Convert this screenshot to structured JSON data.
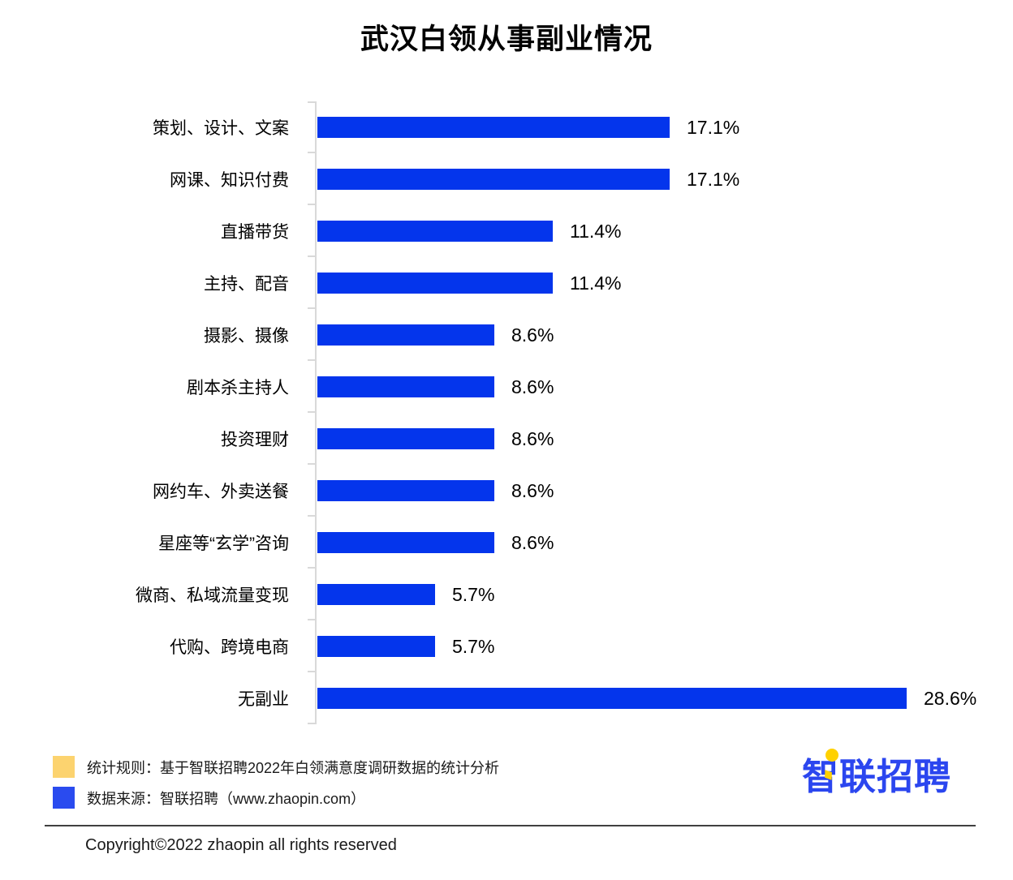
{
  "title": "武汉白领从事副业情况",
  "chart_data": {
    "type": "bar",
    "orientation": "horizontal",
    "title": "武汉白领从事副业情况",
    "categories": [
      "策划、设计、文案",
      "网课、知识付费",
      "直播带货",
      "主持、配音",
      "摄影、摄像",
      "剧本杀主持人",
      "投资理财",
      "网约车、外卖送餐",
      "星座等“玄学”咨询",
      "微商、私域流量变现",
      "代购、跨境电商",
      "无副业"
    ],
    "values": [
      17.1,
      17.1,
      11.4,
      11.4,
      8.6,
      8.6,
      8.6,
      8.6,
      8.6,
      5.7,
      5.7,
      28.6
    ],
    "labels": [
      "17.1%",
      "17.1%",
      "11.4%",
      "11.4%",
      "8.6%",
      "8.6%",
      "8.6%",
      "8.6%",
      "8.6%",
      "5.7%",
      "5.7%",
      "28.6%"
    ],
    "xlim": [
      0,
      30
    ],
    "bar_color": "#0435ec",
    "axis_color": "#d9d9d9",
    "grid": false,
    "legend_position": "none",
    "value_labels_shown": true
  },
  "footer": {
    "legend": [
      {
        "color": "#fcd36f",
        "icon": "yellow-square",
        "label": "统计规则：基于智联招聘2022年白领满意度调研数据的统计分析"
      },
      {
        "color": "#2a4bef",
        "icon": "blue-square",
        "label": "数据来源：智联招聘（www.zhaopin.com）"
      }
    ],
    "logo_text": "智联招聘",
    "logo_color": "#2b46ef",
    "logo_accent_color": "#ffd100",
    "copyright": "Copyright©2022 zhaopin all rights reserved"
  }
}
